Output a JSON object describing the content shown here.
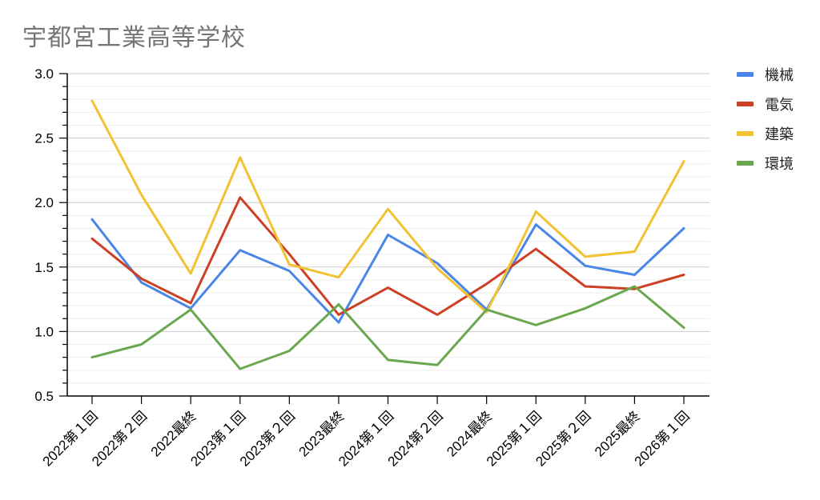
{
  "chart_data": {
    "type": "line",
    "title": "宇都宮工業高等学校",
    "xlabel": "",
    "ylabel": "",
    "categories": [
      "2022第１回",
      "2022第２回",
      "2022最終",
      "2023第１回",
      "2023第２回",
      "2023最終",
      "2024第１回",
      "2024第２回",
      "2024最終",
      "2025第１回",
      "2025第２回",
      "2025最終",
      "2026第１回"
    ],
    "ylim": [
      0.5,
      3.0
    ],
    "yticks": [
      "3.0",
      "2.5",
      "2.0",
      "1.5",
      "1.0",
      "0.5"
    ],
    "grid": true,
    "legend_position": "right",
    "series": [
      {
        "name": "機械",
        "color": "#4a86e8",
        "values": [
          1.87,
          1.38,
          1.18,
          1.63,
          1.47,
          1.07,
          1.75,
          1.53,
          1.17,
          1.83,
          1.51,
          1.44,
          1.8
        ]
      },
      {
        "name": "電気",
        "color": "#cc4125",
        "values": [
          1.72,
          1.41,
          1.22,
          2.04,
          1.6,
          1.13,
          1.34,
          1.13,
          1.37,
          1.64,
          1.35,
          1.33,
          1.44
        ]
      },
      {
        "name": "建築",
        "color": "#f1c232",
        "values": [
          2.79,
          2.06,
          1.45,
          2.35,
          1.52,
          1.42,
          1.95,
          1.49,
          1.15,
          1.93,
          1.58,
          1.62,
          2.32
        ]
      },
      {
        "name": "環境",
        "color": "#6aa84f",
        "values": [
          0.8,
          0.9,
          1.17,
          0.71,
          0.85,
          1.21,
          0.78,
          0.74,
          1.17,
          1.05,
          1.18,
          1.35,
          1.03
        ]
      }
    ]
  }
}
